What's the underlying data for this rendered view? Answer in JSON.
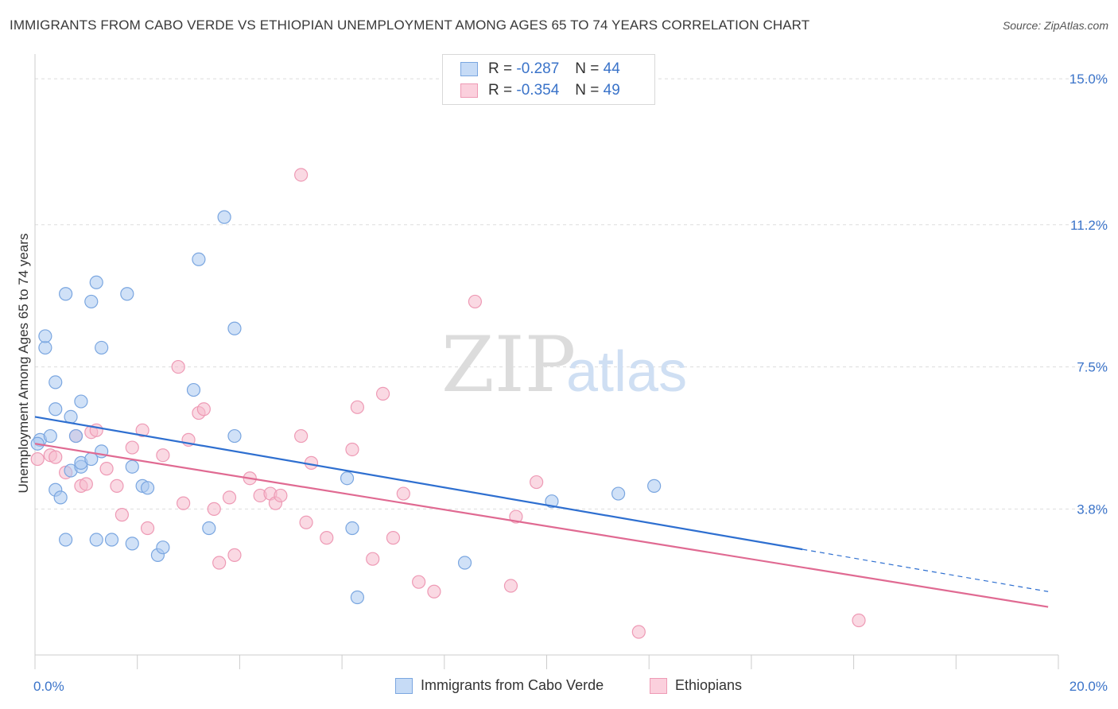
{
  "header": {
    "title": "IMMIGRANTS FROM CABO VERDE VS ETHIOPIAN UNEMPLOYMENT AMONG AGES 65 TO 74 YEARS CORRELATION CHART",
    "source": "Source: ZipAtlas.com"
  },
  "watermark": {
    "zip": "ZIP",
    "atlas": "atlas"
  },
  "legend_stats": [
    {
      "r_label": "R =",
      "r_value": "-0.287",
      "n_label": "N =",
      "n_value": "44"
    },
    {
      "r_label": "R =",
      "r_value": "-0.354",
      "n_label": "N =",
      "n_value": "49"
    }
  ],
  "colors": {
    "blue_fill": "#a9c8f0",
    "blue_stroke": "#7aa6e0",
    "blue_line": "#2e6fd0",
    "pink_fill": "#f6b9cc",
    "pink_stroke": "#ee9ab5",
    "pink_line": "#e06a92",
    "value_text": "#3a73c9",
    "grid": "#dddddd"
  },
  "chart_data": {
    "type": "scatter",
    "title": "IMMIGRANTS FROM CABO VERDE VS ETHIOPIAN UNEMPLOYMENT AMONG AGES 65 TO 74 YEARS CORRELATION CHART",
    "xlabel": "",
    "ylabel": "Unemployment Among Ages 65 to 74 years",
    "xlim": [
      0,
      20
    ],
    "ylim": [
      0,
      15.5
    ],
    "x_tick_labels": [
      "0.0%",
      "20.0%"
    ],
    "y_ticks": [
      3.8,
      7.5,
      11.2,
      15.0
    ],
    "y_tick_labels": [
      "3.8%",
      "7.5%",
      "11.2%",
      "15.0%"
    ],
    "grid": true,
    "legend_position": "bottom",
    "series": [
      {
        "name": "Immigrants from Cabo Verde",
        "color": "#a9c8f0",
        "points": [
          [
            0.1,
            5.6
          ],
          [
            0.2,
            8.0
          ],
          [
            0.2,
            8.3
          ],
          [
            0.3,
            5.7
          ],
          [
            0.4,
            7.1
          ],
          [
            0.4,
            6.4
          ],
          [
            0.4,
            4.3
          ],
          [
            0.5,
            4.1
          ],
          [
            0.6,
            9.4
          ],
          [
            0.6,
            3.0
          ],
          [
            0.7,
            6.2
          ],
          [
            0.7,
            4.8
          ],
          [
            0.8,
            5.7
          ],
          [
            0.9,
            6.6
          ],
          [
            0.9,
            4.9
          ],
          [
            0.9,
            5.0
          ],
          [
            1.1,
            5.1
          ],
          [
            1.1,
            9.2
          ],
          [
            1.2,
            9.7
          ],
          [
            1.2,
            3.0
          ],
          [
            1.3,
            8.0
          ],
          [
            1.3,
            5.3
          ],
          [
            1.5,
            3.0
          ],
          [
            1.8,
            9.4
          ],
          [
            1.9,
            4.9
          ],
          [
            1.9,
            2.9
          ],
          [
            2.1,
            4.4
          ],
          [
            2.2,
            4.35
          ],
          [
            2.4,
            2.6
          ],
          [
            2.5,
            2.8
          ],
          [
            3.1,
            6.9
          ],
          [
            3.2,
            10.3
          ],
          [
            3.4,
            3.3
          ],
          [
            3.7,
            11.4
          ],
          [
            3.9,
            8.5
          ],
          [
            3.9,
            5.7
          ],
          [
            6.1,
            4.6
          ],
          [
            6.2,
            3.3
          ],
          [
            6.3,
            1.5
          ],
          [
            8.4,
            2.4
          ],
          [
            10.1,
            4.0
          ],
          [
            11.4,
            4.2
          ],
          [
            12.1,
            4.4
          ],
          [
            0.05,
            5.5
          ]
        ]
      },
      {
        "name": "Ethiopians",
        "color": "#f6b9cc",
        "points": [
          [
            0.05,
            5.1
          ],
          [
            0.3,
            5.2
          ],
          [
            0.4,
            5.15
          ],
          [
            0.6,
            4.75
          ],
          [
            0.8,
            5.7
          ],
          [
            0.9,
            4.4
          ],
          [
            1.0,
            4.45
          ],
          [
            1.1,
            5.8
          ],
          [
            1.2,
            5.85
          ],
          [
            1.4,
            4.85
          ],
          [
            1.6,
            4.4
          ],
          [
            1.7,
            3.65
          ],
          [
            1.9,
            5.4
          ],
          [
            2.1,
            5.85
          ],
          [
            2.2,
            3.3
          ],
          [
            2.5,
            5.2
          ],
          [
            2.8,
            7.5
          ],
          [
            2.9,
            3.95
          ],
          [
            3.0,
            5.6
          ],
          [
            3.2,
            6.3
          ],
          [
            3.3,
            6.4
          ],
          [
            3.5,
            3.8
          ],
          [
            3.6,
            2.4
          ],
          [
            3.8,
            4.1
          ],
          [
            3.9,
            2.6
          ],
          [
            4.2,
            4.6
          ],
          [
            4.4,
            4.15
          ],
          [
            4.6,
            4.2
          ],
          [
            4.7,
            3.95
          ],
          [
            4.8,
            4.15
          ],
          [
            5.2,
            5.7
          ],
          [
            5.2,
            12.5
          ],
          [
            5.3,
            3.45
          ],
          [
            5.4,
            5.0
          ],
          [
            5.7,
            3.05
          ],
          [
            6.2,
            5.35
          ],
          [
            6.3,
            6.45
          ],
          [
            6.6,
            2.5
          ],
          [
            6.8,
            6.8
          ],
          [
            7.0,
            3.05
          ],
          [
            7.2,
            4.2
          ],
          [
            7.5,
            1.9
          ],
          [
            7.8,
            1.65
          ],
          [
            8.6,
            9.2
          ],
          [
            9.3,
            1.8
          ],
          [
            9.4,
            3.6
          ],
          [
            9.8,
            4.5
          ],
          [
            11.8,
            0.6
          ],
          [
            16.1,
            0.9
          ]
        ]
      }
    ],
    "trend_lines": [
      {
        "series": "Immigrants from Cabo Verde",
        "x_start": 0,
        "y_start": 6.2,
        "x_end": 15.0,
        "y_end": 2.75,
        "dashed_to_x": 19.8,
        "dashed_to_y": 1.65
      },
      {
        "series": "Ethiopians",
        "x_start": 0,
        "y_start": 5.5,
        "x_end": 19.8,
        "y_end": 1.25
      }
    ]
  }
}
